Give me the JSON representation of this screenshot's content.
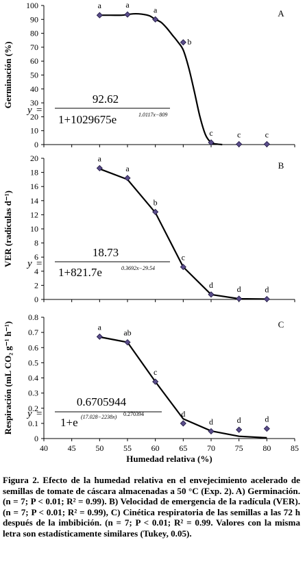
{
  "chart_data": [
    {
      "type": "scatter",
      "panel": "A",
      "ylabel": "Germinación (%)",
      "xlabel": "",
      "ylim": [
        0,
        100
      ],
      "yticks": [
        0,
        10,
        20,
        30,
        40,
        50,
        60,
        70,
        80,
        90,
        100
      ],
      "xlim": [
        40,
        85
      ],
      "x": [
        50,
        55,
        60,
        65,
        70,
        75,
        80
      ],
      "y": [
        93,
        93.5,
        90,
        73.5,
        1.5,
        0.3,
        0.3
      ],
      "letters": [
        "a",
        "a",
        "a",
        "b",
        "c",
        "c",
        "c"
      ],
      "fit_x": [
        50,
        52,
        54,
        55,
        56,
        57,
        58,
        59,
        60,
        61,
        62,
        63,
        64,
        65,
        66,
        67,
        68,
        69,
        70,
        71,
        72
      ],
      "fit_y": [
        93,
        93,
        93,
        93.5,
        94,
        94,
        93.5,
        92.5,
        90,
        88,
        84,
        79,
        74,
        68,
        55,
        38,
        20,
        7,
        1.5,
        0.4,
        0
      ],
      "equation": {
        "numerator": "92.62",
        "denominator": "1+1029675e",
        "exponent": "1.0117x−809"
      }
    },
    {
      "type": "scatter",
      "panel": "B",
      "ylabel": "VER (radículas d⁻¹)",
      "xlabel": "",
      "ylim": [
        0,
        20
      ],
      "yticks": [
        0,
        2,
        4,
        6,
        8,
        10,
        12,
        14,
        16,
        18,
        20
      ],
      "xlim": [
        40,
        85
      ],
      "x": [
        50,
        55,
        60,
        65,
        70,
        75,
        80
      ],
      "y": [
        18.6,
        17.2,
        12.4,
        4.6,
        0.7,
        0.1,
        0.05
      ],
      "letters": [
        "a",
        "a",
        "b",
        "c",
        "d",
        "d",
        "d"
      ],
      "fit_x": [
        50,
        55,
        60,
        65,
        70,
        75,
        80
      ],
      "fit_y": [
        18.5,
        17.0,
        12.3,
        4.6,
        0.7,
        0.1,
        0.05
      ],
      "equation": {
        "numerator": "18.73",
        "denominator": "1+821.7e",
        "exponent": "0.3692x−29.54"
      }
    },
    {
      "type": "scatter",
      "panel": "C",
      "ylabel": "Respiración (mL CO₂ g⁻¹ h⁻¹)",
      "xlabel": "Humedad relativa (%)",
      "ylim": [
        0,
        0.8
      ],
      "yticks": [
        0,
        0.1,
        0.2,
        0.3,
        0.4,
        0.5,
        0.6,
        0.7,
        0.8
      ],
      "xlim": [
        40,
        85
      ],
      "xticks": [
        40,
        45,
        50,
        55,
        60,
        65,
        70,
        75,
        80,
        85
      ],
      "x": [
        50,
        55,
        60,
        65,
        70,
        75,
        80
      ],
      "y": [
        0.672,
        0.635,
        0.375,
        0.1,
        0.048,
        0.058,
        0.065
      ],
      "letters": [
        "a",
        "ab",
        "c",
        "d",
        "d",
        "d",
        "d"
      ],
      "fit_x": [
        50,
        55,
        60,
        65,
        70,
        75,
        80
      ],
      "fit_y": [
        0.67,
        0.635,
        0.375,
        0.13,
        0.05,
        0.015,
        0.005
      ],
      "equation": {
        "numerator": "0.6705944",
        "denominator": "1+e",
        "exponent": "(17.028−2238x)",
        "exponent2": "0.270394"
      }
    }
  ],
  "caption": "Figura 2. Efecto de la humedad relativa en el envejecimiento acelerado de semillas de tomate de cáscara almacenadas a 50 °C (Exp. 2). A) Germinación. (n = 7; P < 0.01; R² = 0.99). B) Velocidad de emergencia de la radícula (VER). (n = 7; P < 0.01; R² = 0.99), C) Cinética respiratoria de las semillas a las 72 h después de la imbibición. (n = 7; P < 0.01; R² = 0.99. Valores con la misma letra son estadísticamente similares (Tukey, 0.05)."
}
